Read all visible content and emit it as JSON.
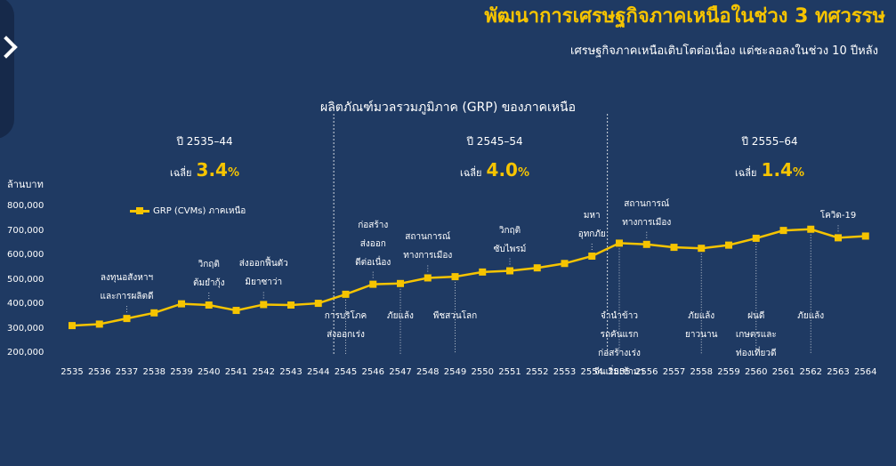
{
  "header": {
    "title": "พัฒนาการเศรษฐกิจภาคเหนือในช่วง 3 ทศวรรษ",
    "subtitle": "เศรษฐกิจภาคเหนือเติบโตต่อเนื่อง แต่ชะลอลงในช่วง 10 ปีหลัง"
  },
  "colors": {
    "background": "#1f3a63",
    "accent": "#f6c400"
  },
  "chart_data": {
    "type": "line",
    "title": "ผลิตภัณฑ์มวลรวมภูมิภาค (GRP) ของภาคเหนือ",
    "ylabel": "ล้านบาท",
    "ylim": [
      200000,
      800000
    ],
    "yticks": [
      "200,000",
      "300,000",
      "400,000",
      "500,000",
      "600,000",
      "700,000",
      "800,000"
    ],
    "x": [
      "2535",
      "2536",
      "2537",
      "2538",
      "2539",
      "2540",
      "2541",
      "2542",
      "2543",
      "2544",
      "2545",
      "2546",
      "2547",
      "2548",
      "2549",
      "2550",
      "2551",
      "2552",
      "2553",
      "2554",
      "2555",
      "2556",
      "2557",
      "2558",
      "2559",
      "2560",
      "2561",
      "2562",
      "2563",
      "2564"
    ],
    "series": [
      {
        "name": "GRP (CVMs) ภาคเหนือ",
        "values": [
          316000,
          322000,
          345000,
          368000,
          405000,
          400000,
          378000,
          402000,
          400000,
          407000,
          444000,
          485000,
          488000,
          511000,
          516000,
          535000,
          540000,
          552000,
          570000,
          600000,
          653000,
          648000,
          636000,
          632000,
          645000,
          673000,
          705000,
          710000,
          675000,
          682000
        ]
      }
    ],
    "periods": [
      {
        "label": "ปี 2535–44",
        "avg_label": "เฉลี่ย",
        "avg": "3.4",
        "unit": "%"
      },
      {
        "label": "ปี 2545–54",
        "avg_label": "เฉลี่ย",
        "avg": "4.0",
        "unit": "%"
      },
      {
        "label": "ปี 2555–64",
        "avg_label": "เฉลี่ย",
        "avg": "1.4",
        "unit": "%"
      }
    ],
    "annotations": [
      {
        "year": "2537",
        "text": "ลงทุนอสังหาฯ\nและการผลิตดี",
        "pos": "above"
      },
      {
        "year": "2540",
        "text": "วิกฤติ\nต้มยำกุ้ง",
        "pos": "above"
      },
      {
        "year": "2542",
        "text": "ส่งออกฟื้นตัว\nมิยาซาว่า",
        "pos": "above"
      },
      {
        "year": "2545",
        "text": "การบริโภค\nส่งออกเร่ง",
        "pos": "below"
      },
      {
        "year": "2546",
        "text": "ก่อสร้าง\nส่งออก\nดีต่อเนื่อง",
        "pos": "above"
      },
      {
        "year": "2547",
        "text": "ภัยแล้ง",
        "pos": "below"
      },
      {
        "year": "2548",
        "text": "สถานการณ์\nทางการเมือง",
        "pos": "above"
      },
      {
        "year": "2549",
        "text": "พืชสวนโลก",
        "pos": "below"
      },
      {
        "year": "2551",
        "text": "วิกฤติ\nซับไพรม์",
        "pos": "above"
      },
      {
        "year": "2554",
        "text": "มหา\nอุทกภัย",
        "pos": "above"
      },
      {
        "year": "2555",
        "text": "จำนำข้าว\nรถคันแรก\nก่อสร้างเร่ง\nจีนเริ่มเข้ามา",
        "pos": "below"
      },
      {
        "year": "2556",
        "text": "สถานการณ์\nทางการเมือง",
        "pos": "above"
      },
      {
        "year": "2558",
        "text": "ภัยแล้ง\nยาวนาน",
        "pos": "below"
      },
      {
        "year": "2560",
        "text": "ฝนดี\nเกษตรและ\nท่องเที่ยวดี",
        "pos": "below"
      },
      {
        "year": "2562",
        "text": "ภัยแล้ง",
        "pos": "below"
      },
      {
        "year": "2563",
        "text": "โควิด-19",
        "pos": "above"
      }
    ]
  }
}
